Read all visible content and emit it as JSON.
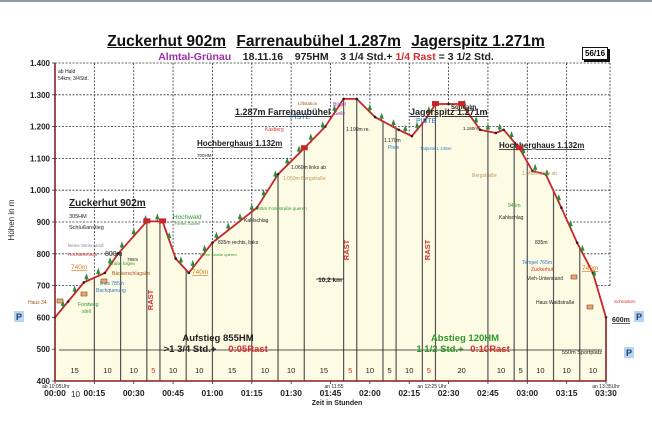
{
  "header": {
    "title_parts": [
      "Zuckerhut 902m",
      "Farrenaubühel 1.287m",
      "Jagerspitz 1.271m"
    ],
    "place": "Almtal-Grünau",
    "date": "18.11.16",
    "hm": "975HM",
    "duration": "3 1/4 Std.+",
    "rast": "1/4 Rast",
    "total": "= 3 1/2 Std.",
    "badge": "56/16"
  },
  "chart_data": {
    "type": "area",
    "title": "Zuckerhut 902m Farrenaubühel 1.287m Jagerspitz 1.271m",
    "xlabel": "Zeit in Stunden",
    "ylabel": "Höhen in m",
    "ylim": [
      400,
      1400
    ],
    "xlim_minutes": [
      0,
      210
    ],
    "y_ticks": [
      "400",
      "500",
      "600",
      "700",
      "800",
      "900",
      "1.000",
      "1.100",
      "1.200",
      "1.300",
      "1.400"
    ],
    "x_ticks": [
      "00:00",
      "00:15",
      "00:30",
      "00:45",
      "01:00",
      "01:15",
      "01:30",
      "01:45",
      "02:00",
      "02:15",
      "02:30",
      "02:45",
      "03:00",
      "03:15",
      "03:30"
    ],
    "grid": true,
    "profile": {
      "x_minutes": [
        0,
        5,
        11,
        19,
        24,
        35,
        41,
        46,
        51,
        60,
        77,
        85,
        95,
        103,
        110,
        115,
        122,
        131,
        136,
        141,
        145,
        150,
        155,
        162,
        168,
        171,
        177,
        182,
        187,
        193,
        199,
        205,
        210
      ],
      "elevation_m": [
        600,
        650,
        710,
        740,
        800,
        902,
        902,
        785,
        740,
        835,
        945,
        1050,
        1132,
        1200,
        1287,
        1287,
        1230,
        1190,
        1170,
        1220,
        1271,
        1271,
        1271,
        1190,
        1180,
        1190,
        1132,
        1060,
        1050,
        945,
        835,
        740,
        600
      ]
    },
    "segments_minutes": [
      "15",
      "10",
      "10",
      "5",
      "10",
      "10",
      "15",
      "10",
      "10",
      "15",
      "5",
      "10",
      "5",
      "10",
      "5",
      "20",
      "10",
      "5",
      "10",
      "10",
      "10"
    ],
    "segment_is_rest": [
      false,
      false,
      false,
      true,
      false,
      false,
      false,
      false,
      false,
      false,
      true,
      false,
      false,
      false,
      true,
      false,
      false,
      false,
      false,
      false,
      false
    ],
    "annotations": {
      "start_note": "ab Hald\n54km; 3/4Std.",
      "start_time": "ab 10:05Uhr",
      "first_seg": "10",
      "t_1155": "an 11:55",
      "t_1225": "an 12:25 Uhr",
      "t_1335": "an 13:35Uhr",
      "distance": "10,2 km",
      "aufstieg": "Aufstieg 855HM",
      "aufstieg_time": ">1 3/4 Std.+",
      "aufstieg_rast": "0:05Rast",
      "abstieg": "Abstieg 120HM",
      "abstieg_time": "1 1/2 Std.+",
      "abstieg_rast": "0:10Rast",
      "rast": "RAST",
      "parking": "P",
      "sportplatz": "550m Sportplatz",
      "end_elev": "600m"
    },
    "labels": {
      "zuckerhut": "Zuckerhut 902m",
      "zuckerhut_hm": "305HM",
      "schlussanstieg": "Schlußanstieg",
      "steinmandl": "kleine Steinmandl",
      "hochbeerhaus": "Hochbeerhaus",
      "m740a": "740m",
      "m800": "800m",
      "strasse_folgen": "Straße folgen",
      "m785": "785m",
      "baeckerschlag": "Bäckerschlagalm",
      "links785": "links 785m",
      "bachquerung": "Bachquerung",
      "haus34": "Haus 34",
      "forstweg": "Forstweg",
      "steil": "steil",
      "hochwald": "Hochwald",
      "hochwald_sub": "Fichten, Buchen",
      "m740b": "740m",
      "m800b": "800m Straße queren",
      "m835": "835m rechts, links",
      "kahlschlag": "Kahlschlag",
      "m945": "945m Forststraße queren",
      "m1050": "1.050m Bergstraße",
      "m1060": "1.060m links ab",
      "hochberghaus": "Hochberghaus 1.132m",
      "hochberghaus_hm": "700HM",
      "kasberg": "Kasberg",
      "piste": "PISTE",
      "liftstation": "Liftstation",
      "buegel": "Bügel",
      "seile": "Seile",
      "farrenau": "1.287m Farrenaubühel",
      "m1190": "1.190m re.",
      "m1170": "1.170m",
      "piste_small": "Piste",
      "jagerspitz": "Jagerspitz 1.271m",
      "sonnalm": "Sonnalm",
      "talpiste": "Talpiste 1.145m",
      "m1180": "1.180m",
      "hochberghaus2": "Hochberghaus 1.132m",
      "bergstrasse": "Bergstraße",
      "m1060b": "1.060m links ab",
      "m945b": "945m",
      "kahlschlag2": "Kahlschlag",
      "m835b": "835m",
      "tempel": "Tempel 765m",
      "zuckerhut_small": "Zuckerhut",
      "m740c": "740m",
      "vieh": "Vieh-Unterstand",
      "haus_wald": "Haus Waldstraße",
      "schranken": "Schranken"
    }
  }
}
